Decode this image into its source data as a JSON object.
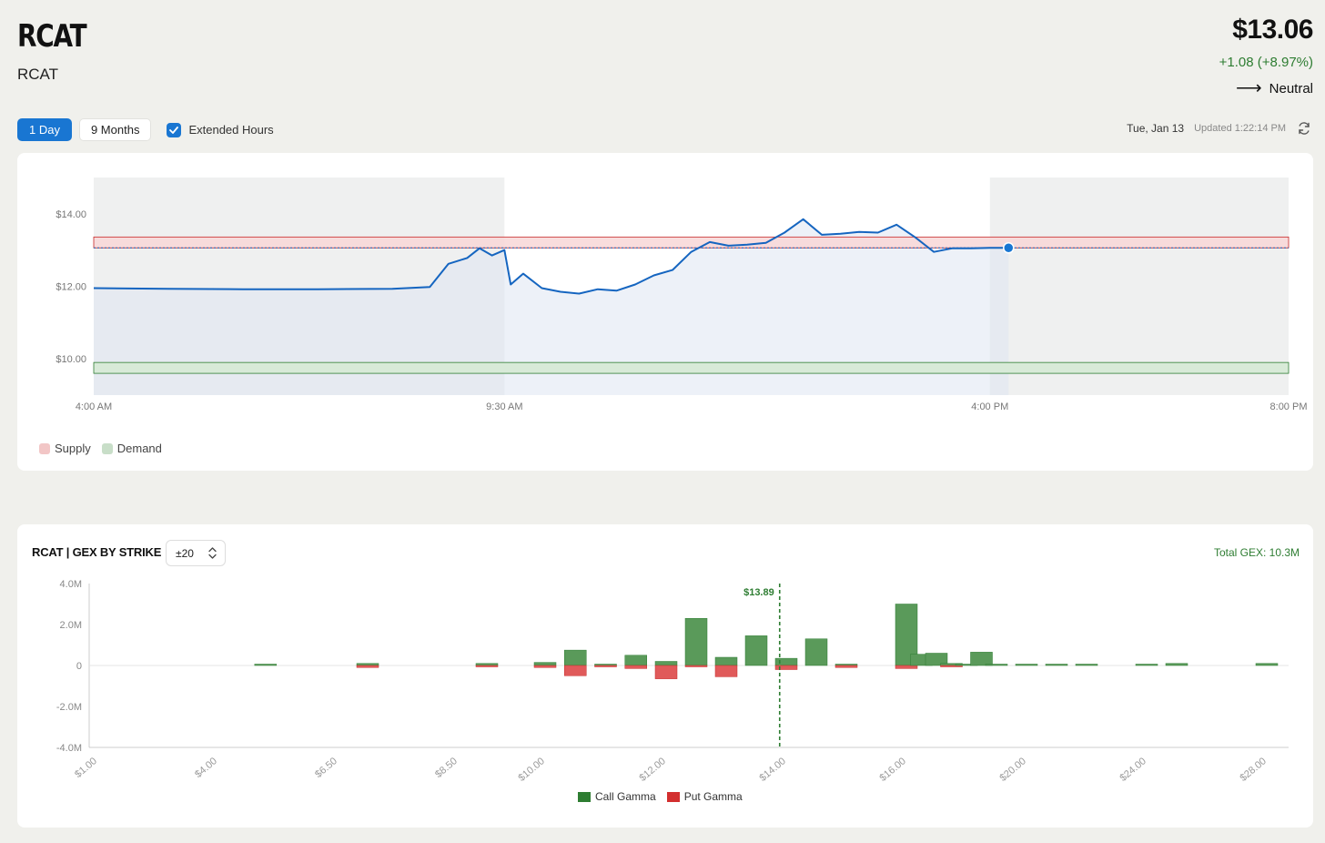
{
  "header": {
    "ticker": "RCAT",
    "subname": "RCAT",
    "price": "$13.06",
    "change": "+1.08 (+8.97%)",
    "sentiment_arrow": "⟶",
    "sentiment": "Neutral"
  },
  "controls": {
    "range_buttons": [
      "1 Day",
      "9 Months"
    ],
    "active_range": "1 Day",
    "extended_hours_label": "Extended Hours",
    "extended_hours_checked": true,
    "date": "Tue, Jan 13",
    "updated": "Updated 1:22:14 PM",
    "refresh_icon": "refresh-icon"
  },
  "colors": {
    "accent": "#1976d2",
    "price_line": "#1565c0",
    "supply": "#f2c6c6",
    "demand": "#c8dec8",
    "call_gamma": "#5a9a5a",
    "put_gamma": "#e05a5a",
    "positive": "#2e7d32"
  },
  "price_chart": {
    "legend": [
      {
        "label": "Supply",
        "color": "#f2c6c6"
      },
      {
        "label": "Demand",
        "color": "#c8dec8"
      }
    ],
    "chart_data": {
      "type": "line",
      "x_ticks": [
        "4:00 AM",
        "9:30 AM",
        "4:00 PM",
        "8:00 PM"
      ],
      "y_ticks": [
        "$14.00",
        "$12.00",
        "$10.00"
      ],
      "ylim": [
        9.0,
        15.0
      ],
      "sessions": [
        "pre-market 4:00 AM-9:30 AM",
        "regular 9:30 AM-4:00 PM",
        "after-hours 4:00 PM-8:00 PM"
      ],
      "supply_zone": [
        13.06,
        13.36
      ],
      "demand_zone": [
        9.6,
        9.9
      ],
      "current_price": 13.06,
      "series": [
        {
          "x": [
            "4:00 AM",
            "5:00 AM",
            "6:00 AM",
            "7:00 AM",
            "8:00 AM",
            "8:30 AM",
            "8:45 AM",
            "9:00 AM",
            "9:10 AM",
            "9:20 AM",
            "9:30 AM",
            "9:35 AM",
            "9:45 AM",
            "10:00 AM",
            "10:15 AM",
            "10:30 AM",
            "10:45 AM",
            "11:00 AM",
            "11:15 AM",
            "11:30 AM",
            "11:45 AM",
            "12:00 PM",
            "12:15 PM",
            "12:30 PM",
            "12:45 PM",
            "1:00 PM",
            "1:15 PM",
            "1:30 PM",
            "1:45 PM",
            "2:00 PM",
            "2:15 PM",
            "2:30 PM",
            "2:45 PM",
            "3:00 PM",
            "3:15 PM",
            "3:30 PM",
            "3:45 PM",
            "4:00 PM",
            "4:15 PM"
          ],
          "y": [
            11.95,
            11.93,
            11.92,
            11.92,
            11.93,
            11.98,
            12.62,
            12.78,
            13.05,
            12.85,
            13.0,
            12.05,
            12.35,
            11.95,
            11.85,
            11.8,
            11.92,
            11.88,
            12.05,
            12.3,
            12.45,
            12.95,
            13.22,
            13.12,
            13.15,
            13.2,
            13.48,
            13.85,
            13.42,
            13.45,
            13.5,
            13.48,
            13.7,
            13.35,
            12.95,
            13.05,
            13.05,
            13.06,
            13.06
          ]
        }
      ]
    }
  },
  "gex_chart": {
    "title": "RCAT | GEX BY STRIKE",
    "range_select": "±20",
    "total": "Total GEX: 10.3M",
    "legend": [
      {
        "label": "Call Gamma",
        "color": "#2e7d32"
      },
      {
        "label": "Put Gamma",
        "color": "#d32f2f"
      }
    ],
    "chart_data": {
      "type": "bar",
      "y_ticks": [
        "4.0M",
        "2.0M",
        "0",
        "-2.0M",
        "-4.0M"
      ],
      "ylim": [
        -4.0,
        4.0
      ],
      "x_ticks": [
        "$1.00",
        "$4.00",
        "$6.50",
        "$8.50",
        "$10.00",
        "$12.00",
        "$14.00",
        "$16.00",
        "$20.00",
        "$24.00",
        "$28.00"
      ],
      "spot_label": "$13.89",
      "spot_price": 13.89,
      "categories": [
        "$5.00",
        "$7.00",
        "$9.00",
        "$10.00",
        "$10.50",
        "$11.00",
        "$11.50",
        "$12.00",
        "$12.50",
        "$13.00",
        "$13.50",
        "$14.00",
        "$14.50",
        "$15.00",
        "$16.00",
        "$16.50",
        "$17.00",
        "$17.50",
        "$18.00",
        "$18.50",
        "$19.00",
        "$20.00",
        "$21.00",
        "$22.00",
        "$24.00",
        "$25.00",
        "$28.00"
      ],
      "series": [
        {
          "name": "Call Gamma",
          "values": [
            0.05,
            0.1,
            0.1,
            0.15,
            0.75,
            0.05,
            0.5,
            0.2,
            2.3,
            0.4,
            1.45,
            0.35,
            1.3,
            0.05,
            3.0,
            0.55,
            0.6,
            0.1,
            0.05,
            0.65,
            0.05,
            0.05,
            0.05,
            0.05,
            0.05,
            0.1,
            0.1
          ]
        },
        {
          "name": "Put Gamma",
          "values": [
            0.0,
            -0.1,
            -0.05,
            -0.1,
            -0.5,
            -0.05,
            -0.15,
            -0.65,
            -0.05,
            -0.55,
            0.0,
            -0.2,
            0.0,
            -0.1,
            -0.15,
            0.0,
            0.0,
            -0.05,
            0.0,
            0.0,
            0.0,
            0.0,
            0.0,
            0.0,
            0.0,
            0.0,
            0.0
          ]
        }
      ]
    }
  }
}
